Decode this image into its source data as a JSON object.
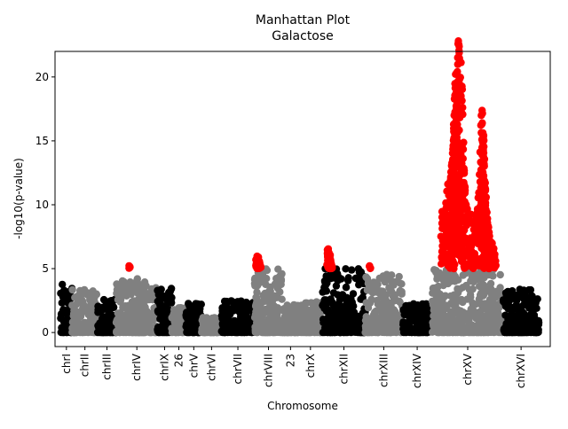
{
  "chart_data": {
    "type": "scatter",
    "title": "Manhattan Plot",
    "subtitle": "Galactose",
    "xlabel": "Chromosome",
    "ylabel": "-log10(p-value)",
    "ylim": [
      -1.1,
      22
    ],
    "yticks": [
      0,
      5,
      10,
      15,
      20
    ],
    "grid": false,
    "significance_threshold": 5,
    "colors": {
      "odd": "#000000",
      "even": "#808080",
      "significant": "#ff0000"
    },
    "chromosomes": [
      {
        "label": "chrI",
        "x": [
          4,
          12
        ],
        "max": 3.9,
        "color": "black"
      },
      {
        "label": "chrII",
        "x": [
          12,
          30
        ],
        "max": 3.4,
        "color": "gray"
      },
      {
        "label": "chrIII",
        "x": [
          30,
          43
        ],
        "max": 2.6,
        "color": "black"
      },
      {
        "label": "chrIV",
        "x": [
          43,
          72
        ],
        "max": 4.3,
        "color": "gray",
        "peaks": [
          [
            52,
            5.2
          ]
        ]
      },
      {
        "label": "chrIX",
        "x": [
          72,
          82
        ],
        "max": 3.6,
        "color": "black"
      },
      {
        "label": "26",
        "x": [
          82,
          92
        ],
        "max": 2.0,
        "color": "gray"
      },
      {
        "label": "chrV",
        "x": [
          92,
          103
        ],
        "max": 2.3,
        "color": "black"
      },
      {
        "label": "chrVI",
        "x": [
          103,
          117
        ],
        "max": 1.2,
        "color": "gray"
      },
      {
        "label": "chrVII",
        "x": [
          117,
          140
        ],
        "max": 2.5,
        "color": "black"
      },
      {
        "label": "chrVIII",
        "x": [
          140,
          160
        ],
        "max": 5.0,
        "color": "gray",
        "peaks": [
          [
            142,
            5.9
          ],
          [
            143,
            5.6
          ],
          [
            144,
            5.3
          ]
        ]
      },
      {
        "label": "23",
        "x": [
          160,
          171
        ],
        "max": 2.3,
        "color": "gray"
      },
      {
        "label": "chrX",
        "x": [
          171,
          188
        ],
        "max": 2.4,
        "color": "gray"
      },
      {
        "label": "chrXII",
        "x": [
          188,
          218
        ],
        "max": 5.0,
        "color": "black",
        "peaks": [
          [
            192,
            6.4
          ],
          [
            192.5,
            6.0
          ],
          [
            193,
            5.7
          ],
          [
            193.5,
            5.4
          ],
          [
            194,
            5.1
          ]
        ]
      },
      {
        "label": "chrXIII",
        "x": [
          218,
          244
        ],
        "max": 4.6,
        "color": "gray",
        "peaks": [
          [
            221,
            5.2
          ]
        ]
      },
      {
        "label": "chrXIV",
        "x": [
          244,
          265
        ],
        "max": 2.3,
        "color": "black"
      },
      {
        "label": "chrXV",
        "x": [
          265,
          315
        ],
        "max": 5.0,
        "color": "gray",
        "peaks": [
          [
            272,
            9.0
          ],
          [
            278,
            12.0
          ],
          [
            280,
            15.0
          ],
          [
            281,
            18.0
          ],
          [
            283,
            20.9
          ],
          [
            284,
            21.0
          ],
          [
            286,
            19.0
          ],
          [
            288,
            10.0
          ],
          [
            296,
            8.0
          ],
          [
            300,
            16.3
          ],
          [
            301,
            15.0
          ],
          [
            302,
            12.0
          ],
          [
            303,
            9.0
          ],
          [
            306,
            7.0
          ],
          [
            309,
            6.0
          ]
        ]
      },
      {
        "label": "chrXVI",
        "x": [
          315,
          340
        ],
        "max": 3.4,
        "color": "black"
      }
    ]
  }
}
